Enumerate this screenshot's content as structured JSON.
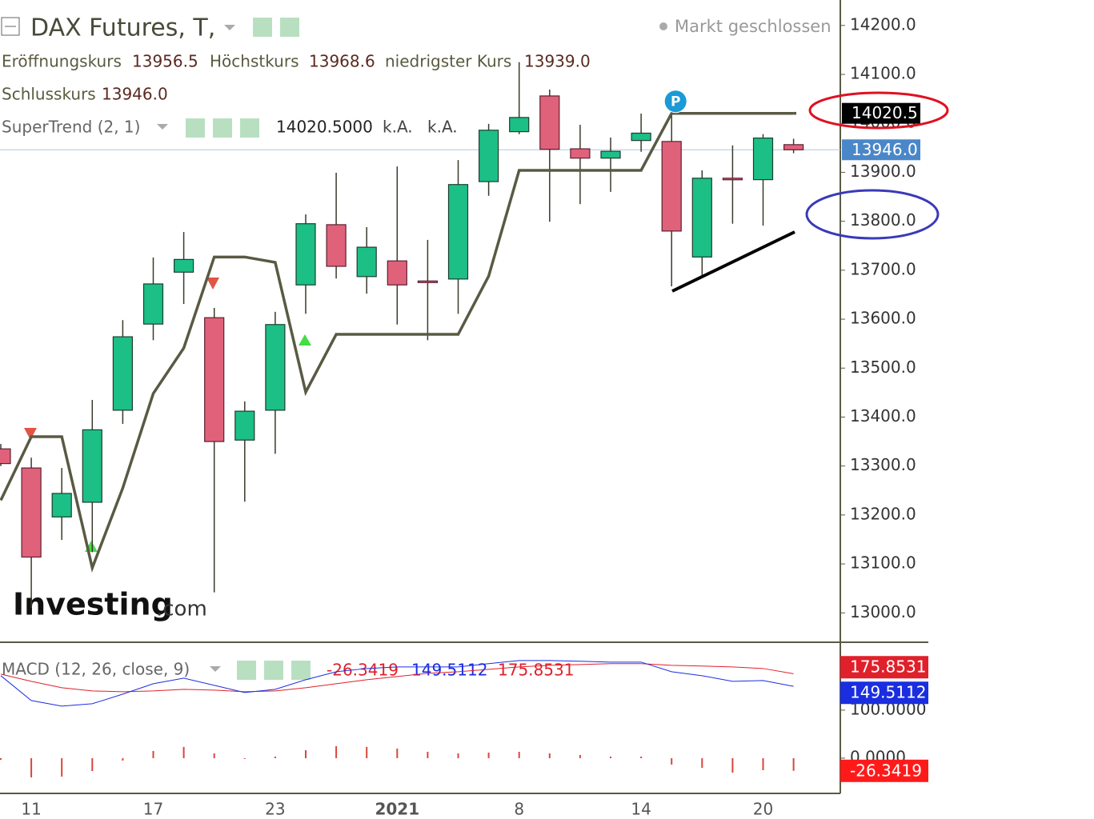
{
  "chart_data": [
    {
      "type": "candlestick",
      "title": "DAX Futures, T,",
      "status": "Markt geschlossen",
      "marker": "P",
      "categories": [
        null,
        "11",
        null,
        null,
        null,
        "17",
        null,
        null,
        null,
        "23",
        null,
        null,
        null,
        "2021",
        null,
        null,
        null,
        "8",
        null,
        null,
        null,
        "14",
        null,
        null,
        null,
        "20",
        null
      ],
      "open": [
        13335,
        13296,
        13196,
        13226,
        13414,
        13590,
        13696,
        13603,
        13353,
        13414,
        13670,
        13793,
        13687,
        13719,
        13678,
        13682,
        13881,
        13983,
        14056,
        13948,
        13929,
        13965,
        13963,
        13727,
        13888,
        13885,
        13956.5
      ],
      "high": [
        13345,
        13317,
        13296,
        13435,
        13598,
        13726,
        13778,
        13623,
        13432,
        13615,
        13814,
        13899,
        13788,
        13912,
        13762,
        13925,
        13999,
        14125,
        14069,
        13997,
        13971,
        14020,
        14023,
        13904,
        13955,
        13978,
        13968.6
      ],
      "low": [
        13300,
        13010,
        13149,
        13124,
        13386,
        13557,
        13631,
        13042,
        13227,
        13325,
        13611,
        13683,
        13652,
        13589,
        13557,
        13611,
        13852,
        13978,
        13799,
        13835,
        13860,
        13942,
        13667,
        13688,
        13795,
        13791,
        13939
      ],
      "close": [
        13305,
        13114,
        13244,
        13374,
        13564,
        13672,
        13722,
        13350,
        13412,
        13589,
        13795,
        13708,
        13747,
        13670,
        13677,
        13875,
        13986,
        14012,
        13947,
        13929,
        13943,
        13980,
        13780,
        13888,
        13886,
        13970,
        13946
      ],
      "up_color": "#1cbf85",
      "down_color": "#e0627a",
      "close_color": "#4a87c8",
      "ylim": [
        12940,
        14252
      ],
      "yticks": [
        {
          "value": 14200,
          "label": "14200.0"
        },
        {
          "value": 14100,
          "label": "14100.0"
        },
        {
          "value": 14000,
          "label": "14000.0"
        },
        {
          "value": 13900,
          "label": "13900.0"
        },
        {
          "value": 13800,
          "label": "13800.0"
        },
        {
          "value": 13700,
          "label": "13700.0"
        },
        {
          "value": 13600,
          "label": "13600.0"
        },
        {
          "value": 13500,
          "label": "13500.0"
        },
        {
          "value": 13400,
          "label": "13400.0"
        },
        {
          "value": 13300,
          "label": "13300.0"
        },
        {
          "value": 13200,
          "label": "13200.0"
        },
        {
          "value": 13100,
          "label": "13100.0"
        },
        {
          "value": 13000,
          "label": "13000.0"
        }
      ],
      "legend": {
        "open_label": "Eröffnungskurs",
        "open": "13956.5",
        "high_label": "Höchstkurs",
        "high": "13968.6",
        "low_label": "niedrigster Kurs",
        "low": "13939.0",
        "close_label": "Schlusskurs",
        "close": "13946.0"
      },
      "overlay": {
        "name": "SuperTrend (2, 1)",
        "color": "#5a5a44",
        "values": [
          13230,
          13360,
          13360,
          13092,
          13255,
          13448,
          13541,
          13727,
          13727,
          13716,
          13451,
          13569,
          13569,
          13569,
          13569,
          13569,
          13688,
          13904,
          13904,
          13904,
          13904,
          13904,
          14020.5,
          14020.5,
          14020.5,
          14020.5,
          14020.5
        ],
        "last_label": "14020.5000",
        "axis_label": "14020.5",
        "extra": [
          "k.A.",
          "k.A."
        ]
      }
    },
    {
      "type": "macd",
      "title": "MACD (12, 26, close, 9)",
      "ylim": [
        -70,
        238
      ],
      "yticks": [
        {
          "value": 100,
          "label": "100.0000"
        },
        {
          "value": 0,
          "label": "0.0000"
        }
      ],
      "histogram": {
        "color": "#d9463b",
        "values": [
          -3.3,
          -40,
          -38.4,
          -26.7,
          -5,
          15,
          23.4,
          10,
          -1.6,
          3.3,
          16.6,
          25,
          23.4,
          20,
          13.3,
          10,
          11.7,
          13.3,
          10,
          6.7,
          3.3,
          3.3,
          -13.3,
          -20,
          -30,
          -25,
          -26.3419
        ],
        "last_label": "-26.3419"
      },
      "macd": {
        "color": "#1a2ee0",
        "values": [
          171.7,
          120,
          108.3,
          113.3,
          133.3,
          155,
          166.7,
          151.7,
          136.7,
          143.3,
          163.3,
          180,
          186.7,
          190,
          190,
          190,
          196.7,
          203.3,
          203.3,
          201.7,
          200,
          200,
          180,
          171.7,
          160,
          161.7,
          149.5112
        ],
        "last_label": "149.5112"
      },
      "signal": {
        "color": "#e0202a",
        "values": [
          175,
          160,
          146.7,
          140,
          138.3,
          140,
          143.3,
          141.7,
          138.3,
          140,
          146.7,
          155,
          163.3,
          170,
          176.7,
          180,
          185,
          190,
          193.3,
          195,
          196.7,
          196.7,
          193.3,
          191.7,
          190,
          186.7,
          175.8531
        ],
        "last_label": "175.8531"
      }
    }
  ],
  "logo": {
    "brand": "Investing",
    "suffix": ".com"
  }
}
